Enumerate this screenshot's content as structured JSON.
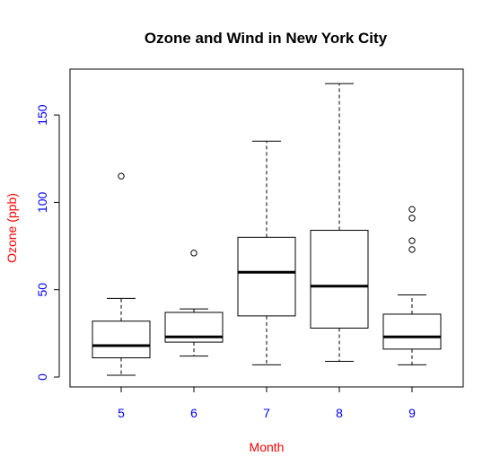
{
  "chart_data": {
    "type": "boxplot",
    "title": "Ozone and Wind in New York City",
    "xlabel": "Month",
    "ylabel": "Ozone (ppb)",
    "categories": [
      "5",
      "6",
      "7",
      "8",
      "9"
    ],
    "ylim": [
      -5,
      173
    ],
    "yticks": [
      "0",
      "50",
      "100",
      "150"
    ],
    "boxes": [
      {
        "category": "5",
        "whisker_low": 1,
        "q1": 11,
        "median": 18,
        "q3": 32,
        "whisker_high": 45,
        "outliers": [
          115
        ]
      },
      {
        "category": "6",
        "whisker_low": 12,
        "q1": 20,
        "median": 23,
        "q3": 37,
        "whisker_high": 39,
        "outliers": [
          71
        ]
      },
      {
        "category": "7",
        "whisker_low": 7,
        "q1": 35,
        "median": 60,
        "q3": 80,
        "whisker_high": 135,
        "outliers": []
      },
      {
        "category": "8",
        "whisker_low": 9,
        "q1": 28,
        "median": 52,
        "q3": 84,
        "whisker_high": 168,
        "outliers": []
      },
      {
        "category": "9",
        "whisker_low": 7,
        "q1": 16,
        "median": 23,
        "q3": 36,
        "whisker_high": 47,
        "outliers": [
          73,
          78,
          91,
          96
        ]
      }
    ],
    "colors": {
      "axis_label": "#ff0000",
      "tick_label": "#0000ff",
      "box": "#000000"
    },
    "grid": false,
    "legend": "none"
  }
}
